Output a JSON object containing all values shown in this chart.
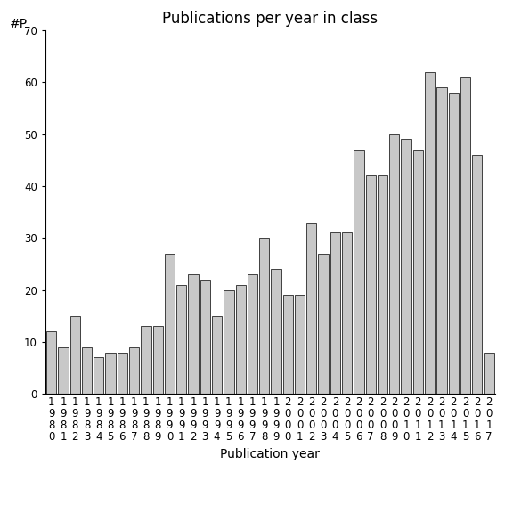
{
  "title": "Publications per year in class",
  "xlabel": "Publication year",
  "ylabel": "#P",
  "years": [
    1980,
    1981,
    1982,
    1983,
    1984,
    1985,
    1986,
    1987,
    1988,
    1989,
    1990,
    1991,
    1992,
    1993,
    1994,
    1995,
    1996,
    1997,
    1998,
    1999,
    2000,
    2001,
    2002,
    2003,
    2004,
    2005,
    2006,
    2007,
    2008,
    2009,
    2010,
    2011,
    2012,
    2013,
    2014,
    2015,
    2016,
    2017
  ],
  "values": [
    12,
    9,
    15,
    9,
    7,
    8,
    8,
    9,
    13,
    13,
    27,
    21,
    23,
    22,
    15,
    20,
    21,
    23,
    30,
    24,
    19,
    19,
    33,
    27,
    31,
    31,
    47,
    42,
    42,
    50,
    49,
    47,
    62,
    59,
    58,
    61,
    46,
    8
  ],
  "bar_color": "#c8c8c8",
  "bar_edge_color": "#000000",
  "ylim": [
    0,
    70
  ],
  "yticks": [
    0,
    10,
    20,
    30,
    40,
    50,
    60,
    70
  ],
  "background_color": "#ffffff",
  "title_fontsize": 12,
  "axis_label_fontsize": 10,
  "tick_fontsize": 8.5
}
